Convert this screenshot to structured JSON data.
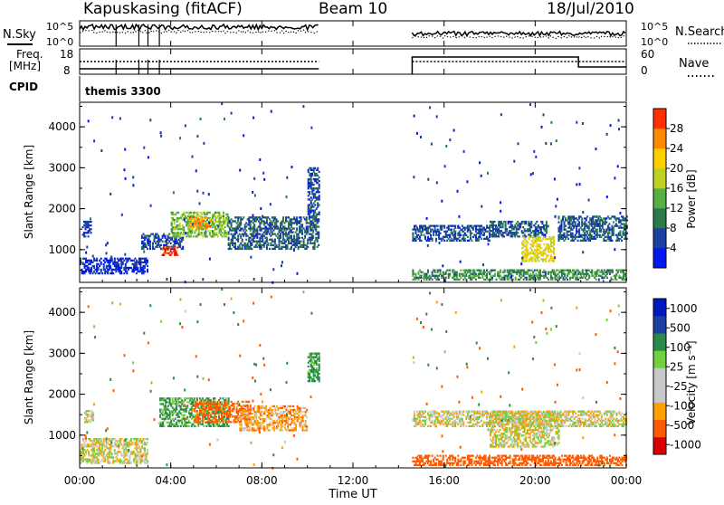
{
  "header": {
    "station": "Kapuskasing (fitACF)",
    "beam": "Beam 10",
    "date": "18/Jul/2010"
  },
  "noise_panel": {
    "left_label": "N.Sky",
    "right_label": "N.Search",
    "left_ticks": [
      "10^5",
      "10^0"
    ],
    "right_ticks": [
      "10^5",
      "10^0"
    ]
  },
  "freq_panel": {
    "left_label_1": "Freq.",
    "left_label_2": "[MHz]",
    "right_label": "Nave",
    "left_ticks": [
      "18",
      "8"
    ],
    "right_ticks": [
      "60",
      "0"
    ]
  },
  "cpid_panel": {
    "label": "CPID",
    "value": "themis 3300"
  },
  "colors": {
    "power_scale": [
      "#0018f0",
      "#1e3fa0",
      "#2a7a4a",
      "#55b040",
      "#c0d020",
      "#ffd000",
      "#ff8a00",
      "#ff3000",
      "#d80000"
    ],
    "velocity_scale": [
      "#d80000",
      "#ff5a00",
      "#ffa000",
      "#c8c8c8",
      "#c8c8c8",
      "#70d040",
      "#2a8a4a",
      "#1e3fa0",
      "#0018c0"
    ],
    "ground_scatter": "#c8c8c8"
  },
  "chart_data": [
    {
      "type": "heatmap",
      "name": "power",
      "xlabel": "",
      "ylabel": "Slant Range [km]",
      "ylim": [
        200,
        4600
      ],
      "y_ticks": [
        "1000",
        "2000",
        "3000",
        "4000"
      ],
      "colorbar_label": "Power [dB]",
      "colorbar_ticks": [
        "4",
        "8",
        "12",
        "16",
        "20",
        "24",
        "28"
      ],
      "data_gap_hours": [
        10.5,
        14.6
      ],
      "features": [
        {
          "t": [
            0.1,
            0.5
          ],
          "r": [
            1300,
            1700
          ],
          "db": 6
        },
        {
          "t": [
            0.0,
            3.0
          ],
          "r": [
            400,
            800
          ],
          "db": 5
        },
        {
          "t": [
            2.7,
            4.5
          ],
          "r": [
            1000,
            1400
          ],
          "db": 7
        },
        {
          "t": [
            4.0,
            6.5
          ],
          "r": [
            1300,
            1900
          ],
          "db": 14
        },
        {
          "t": [
            4.8,
            5.7
          ],
          "r": [
            1500,
            1800
          ],
          "db": 22
        },
        {
          "t": [
            3.6,
            4.3
          ],
          "r": [
            850,
            1050
          ],
          "db": 26
        },
        {
          "t": [
            6.5,
            10.5
          ],
          "r": [
            1000,
            1800
          ],
          "db": 8
        },
        {
          "t": [
            10.0,
            10.5
          ],
          "r": [
            1800,
            3000
          ],
          "db": 7
        },
        {
          "t": [
            14.6,
            18.0
          ],
          "r": [
            1200,
            1600
          ],
          "db": 7
        },
        {
          "t": [
            18.0,
            20.5
          ],
          "r": [
            1300,
            1700
          ],
          "db": 8
        },
        {
          "t": [
            19.4,
            20.8
          ],
          "r": [
            700,
            1300
          ],
          "db": 18
        },
        {
          "t": [
            21.0,
            24.0
          ],
          "r": [
            1200,
            1800
          ],
          "db": 8
        },
        {
          "t": [
            14.6,
            24.0
          ],
          "r": [
            250,
            500
          ],
          "db": 11
        }
      ]
    },
    {
      "type": "heatmap",
      "name": "velocity",
      "xlabel": "Time UT",
      "ylabel": "Slant Range [km]",
      "ylim": [
        200,
        4600
      ],
      "y_ticks": [
        "1000",
        "2000",
        "3000",
        "4000"
      ],
      "x_ticks": [
        "00:00",
        "04:00",
        "08:00",
        "12:00",
        "16:00",
        "20:00",
        "00:00"
      ],
      "xlim_hours": [
        0,
        24
      ],
      "colorbar_label": "Velocity [m s⁻¹]",
      "colorbar_ticks": [
        "1000",
        "500",
        "100",
        "25",
        "-25",
        "-100",
        "-500",
        "-1000"
      ],
      "data_gap_hours": [
        10.5,
        14.6
      ],
      "features": [
        {
          "t": [
            0.0,
            3.0
          ],
          "r": [
            300,
            900
          ],
          "v": 0
        },
        {
          "t": [
            0.2,
            0.6
          ],
          "r": [
            1300,
            1600
          ],
          "v": 0
        },
        {
          "t": [
            3.5,
            6.5
          ],
          "r": [
            1200,
            1900
          ],
          "v": 120
        },
        {
          "t": [
            5.0,
            7.5
          ],
          "r": [
            1300,
            1800
          ],
          "v": -150
        },
        {
          "t": [
            7.0,
            10.0
          ],
          "r": [
            1100,
            1700
          ],
          "v": -60
        },
        {
          "t": [
            10.0,
            10.5
          ],
          "r": [
            2300,
            3000
          ],
          "v": 150
        },
        {
          "t": [
            14.6,
            24.0
          ],
          "r": [
            1200,
            1600
          ],
          "v": 0
        },
        {
          "t": [
            18.0,
            21.0
          ],
          "r": [
            700,
            1600
          ],
          "v": 0
        },
        {
          "t": [
            14.6,
            24.0
          ],
          "r": [
            250,
            500
          ],
          "v": -400
        }
      ]
    }
  ]
}
